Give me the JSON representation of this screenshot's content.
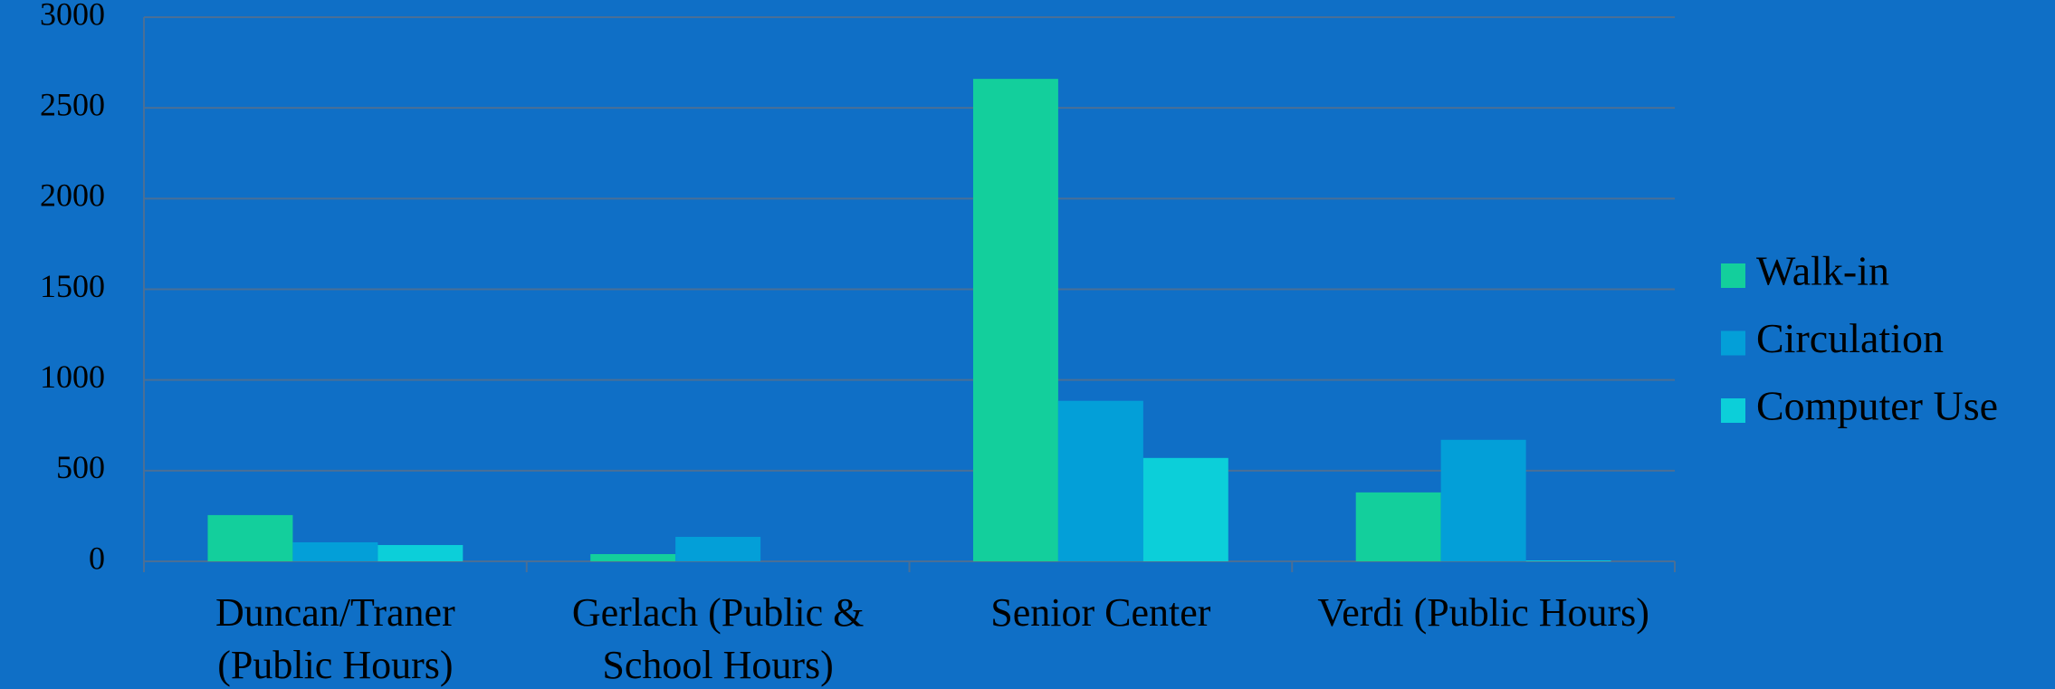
{
  "chart_data": {
    "type": "bar",
    "categories": [
      "Duncan/Traner (Public Hours)",
      "Gerlach (Public & School Hours)",
      "Senior Center",
      "Verdi (Public Hours)"
    ],
    "series": [
      {
        "name": "Walk-in",
        "color": "#13cf9c",
        "values": [
          255,
          40,
          2660,
          380
        ]
      },
      {
        "name": "Circulation",
        "color": "#039fd8",
        "values": [
          105,
          135,
          885,
          670
        ]
      },
      {
        "name": "Computer Use",
        "color": "#0ccfd9",
        "values": [
          90,
          0,
          570,
          5
        ]
      }
    ],
    "ylim": [
      0,
      3000
    ],
    "yticks": [
      0,
      500,
      1000,
      1500,
      2000,
      2500,
      3000
    ],
    "grid": true,
    "legend": "right"
  }
}
